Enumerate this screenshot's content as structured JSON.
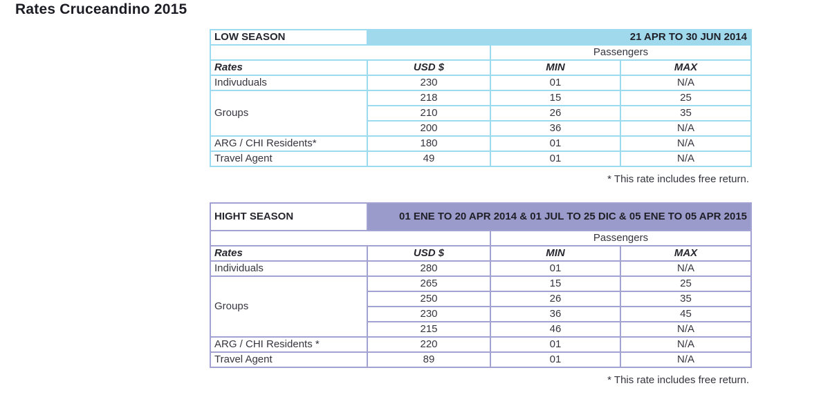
{
  "page_title": "Rates Cruceandino 2015",
  "theme": {
    "low_season_fill": "#a0d9ec",
    "low_season_border": "#9bdaef",
    "high_season_fill": "#9b9bcb",
    "high_season_border": "#a2a2d2",
    "text_color": "#35353f"
  },
  "tables": [
    {
      "season_label": "LOW SEASON",
      "date_range": "21 APR TO 30 JUN 2014",
      "passengers_label": "Passengers",
      "columns": {
        "rates": "Rates",
        "usd": "USD $",
        "min": "MIN",
        "max": "MAX"
      },
      "rows": [
        {
          "label": "Indivuduals",
          "rowspan": 1,
          "usd": "230",
          "min": "01",
          "max": "N/A"
        },
        {
          "label": "Groups",
          "rowspan": 3,
          "usd": "218",
          "min": "15",
          "max": "25"
        },
        {
          "usd": "210",
          "min": "26",
          "max": "35"
        },
        {
          "usd": "200",
          "min": "36",
          "max": "N/A"
        },
        {
          "label": "ARG / CHI Residents*",
          "rowspan": 1,
          "usd": "180",
          "min": "01",
          "max": "N/A"
        },
        {
          "label": "Travel Agent",
          "rowspan": 1,
          "usd": "49",
          "min": "01",
          "max": "N/A"
        }
      ],
      "footnote": "* This rate includes free return."
    },
    {
      "season_label": "HIGHT SEASON",
      "date_range": "01 ENE TO 20 APR 2014 & 01 JUL TO 25 DIC & 05 ENE TO 05 APR 2015",
      "passengers_label": "Passengers",
      "columns": {
        "rates": "Rates",
        "usd": "USD $",
        "min": "MIN",
        "max": "MAX"
      },
      "rows": [
        {
          "label": "Individuals",
          "rowspan": 1,
          "usd": "280",
          "min": "01",
          "max": "N/A"
        },
        {
          "label": "Groups",
          "rowspan": 4,
          "usd": "265",
          "min": "15",
          "max": "25"
        },
        {
          "usd": "250",
          "min": "26",
          "max": "35"
        },
        {
          "usd": "230",
          "min": "36",
          "max": "45"
        },
        {
          "usd": "215",
          "min": "46",
          "max": "N/A"
        },
        {
          "label": "ARG / CHI Residents *",
          "rowspan": 1,
          "usd": "220",
          "min": "01",
          "max": "N/A"
        },
        {
          "label": "Travel Agent",
          "rowspan": 1,
          "usd": "89",
          "min": "01",
          "max": "N/A"
        }
      ],
      "footnote": "* This rate includes free return."
    }
  ]
}
